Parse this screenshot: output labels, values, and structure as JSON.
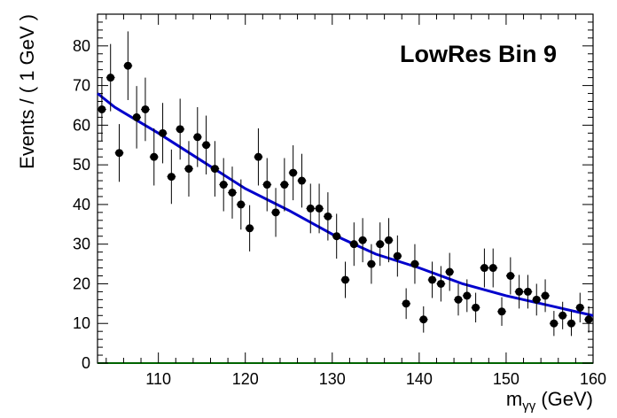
{
  "chart_data": {
    "type": "scatter",
    "title": "LowRes Bin 9",
    "xlabel": "m",
    "xlabel_sub": "γγ",
    "xlabel_unit": "(GeV)",
    "ylabel": "Events / ( 1 GeV )",
    "xlim": [
      103,
      160
    ],
    "ylim": [
      0,
      88
    ],
    "xticks": [
      110,
      120,
      130,
      140,
      150,
      160
    ],
    "yticks": [
      0,
      10,
      20,
      30,
      40,
      50,
      60,
      70,
      80
    ],
    "grid": false,
    "colors": {
      "points": "#000000",
      "fit": "#0000cc",
      "baseline": "#006400"
    },
    "series": [
      {
        "kind": "points_with_errors",
        "x": [
          103.5,
          104.5,
          105.5,
          106.5,
          107.5,
          108.5,
          109.5,
          110.5,
          111.5,
          112.5,
          113.5,
          114.5,
          115.5,
          116.5,
          117.5,
          118.5,
          119.5,
          120.5,
          121.5,
          122.5,
          123.5,
          124.5,
          125.5,
          126.5,
          127.5,
          128.5,
          129.5,
          130.5,
          131.5,
          132.5,
          133.5,
          134.5,
          135.5,
          136.5,
          137.5,
          138.5,
          139.5,
          140.5,
          141.5,
          142.5,
          143.5,
          144.5,
          145.5,
          146.5,
          147.5,
          148.5,
          149.5,
          150.5,
          151.5,
          152.5,
          153.5,
          154.5,
          155.5,
          156.5,
          157.5,
          158.5,
          159.5
        ],
        "y": [
          64,
          72,
          53,
          75,
          62,
          64,
          52,
          58,
          47,
          59,
          49,
          57,
          55,
          49,
          45,
          43,
          40,
          34,
          52,
          45,
          38,
          45,
          48,
          46,
          39,
          39,
          37,
          32,
          21,
          30,
          31,
          25,
          30,
          31,
          27,
          15,
          25,
          11,
          21,
          20,
          23,
          16,
          17,
          14,
          24,
          24,
          13,
          22,
          18,
          18,
          16,
          17,
          10,
          12,
          10,
          14,
          11
        ]
      },
      {
        "kind": "fit_curve",
        "x": [
          103,
          105,
          110,
          115,
          120,
          125,
          130,
          135,
          140,
          145,
          150,
          155,
          160
        ],
        "y": [
          68,
          64.5,
          58,
          51,
          44,
          38.5,
          32.5,
          27.5,
          24,
          20,
          17,
          14.5,
          12
        ]
      }
    ]
  }
}
